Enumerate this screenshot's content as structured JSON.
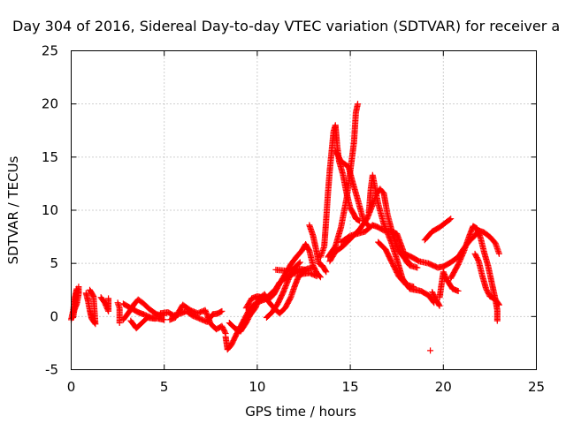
{
  "chart_data": {
    "type": "scatter",
    "title": "Day 304 of 2016, Sidereal Day-to-day VTEC variation (SDTVAR) for receiver a",
    "xlabel": "GPS time / hours",
    "ylabel": "SDTVAR / TECUs",
    "xlim": [
      0,
      25
    ],
    "ylim": [
      -5,
      25
    ],
    "xticks": [
      "0",
      "5",
      "10",
      "15",
      "20",
      "25"
    ],
    "yticks": [
      "-5",
      "0",
      "5",
      "10",
      "15",
      "20",
      "25"
    ],
    "grid": true,
    "marker": "+",
    "color": "#ff0000",
    "series": [
      {
        "points": [
          [
            0.0,
            -0.3
          ],
          [
            0.1,
            0.5
          ],
          [
            0.2,
            1.8
          ],
          [
            0.3,
            2.6
          ],
          [
            0.2,
            1.0
          ],
          [
            0.1,
            -0.1
          ]
        ]
      },
      {
        "points": [
          [
            0.1,
            0.3
          ],
          [
            0.3,
            1.2
          ],
          [
            0.4,
            2.1
          ],
          [
            0.4,
            2.8
          ]
        ]
      },
      {
        "points": [
          [
            0.8,
            2.2
          ],
          [
            0.9,
            1.5
          ],
          [
            1.0,
            0.6
          ],
          [
            1.1,
            -0.2
          ],
          [
            1.3,
            -0.7
          ],
          [
            1.2,
            1.9
          ],
          [
            1.0,
            2.5
          ]
        ]
      },
      {
        "points": [
          [
            1.6,
            1.8
          ],
          [
            1.8,
            1.3
          ],
          [
            2.0,
            0.5
          ],
          [
            2.0,
            1.7
          ]
        ]
      },
      {
        "points": [
          [
            2.5,
            1.3
          ],
          [
            2.6,
            0.8
          ],
          [
            2.6,
            -0.6
          ]
        ]
      },
      {
        "points": [
          [
            2.8,
            1.2
          ],
          [
            3.2,
            0.8
          ],
          [
            3.6,
            0.4
          ],
          [
            3.9,
            0.2
          ],
          [
            4.3,
            -0.1
          ],
          [
            4.7,
            -0.2
          ],
          [
            5.0,
            -0.3
          ]
        ]
      },
      {
        "points": [
          [
            2.8,
            -0.3
          ],
          [
            3.1,
            0.4
          ],
          [
            3.4,
            1.2
          ],
          [
            3.6,
            1.6
          ],
          [
            3.9,
            1.2
          ],
          [
            4.2,
            0.7
          ],
          [
            4.6,
            0.2
          ],
          [
            5.0,
            0.1
          ]
        ]
      },
      {
        "points": [
          [
            3.2,
            -0.4
          ],
          [
            3.5,
            -1.1
          ],
          [
            3.8,
            -0.6
          ],
          [
            4.1,
            -0.1
          ],
          [
            4.5,
            -0.2
          ]
        ]
      },
      {
        "points": [
          [
            4.8,
            0.3
          ],
          [
            5.2,
            0.4
          ],
          [
            5.5,
            0.1
          ],
          [
            5.9,
            0.3
          ],
          [
            6.2,
            0.5
          ],
          [
            6.5,
            0.1
          ],
          [
            6.9,
            -0.2
          ],
          [
            7.3,
            -0.5
          ],
          [
            7.6,
            0.2
          ],
          [
            7.9,
            0.3
          ],
          [
            8.1,
            0.5
          ]
        ]
      },
      {
        "points": [
          [
            5.3,
            -0.3
          ],
          [
            5.6,
            -0.1
          ],
          [
            6.0,
            1.1
          ],
          [
            6.4,
            0.6
          ],
          [
            6.8,
            0.3
          ],
          [
            7.2,
            0.6
          ],
          [
            7.5,
            -0.7
          ],
          [
            7.8,
            -1.2
          ],
          [
            8.1,
            -0.9
          ],
          [
            8.3,
            -1.6
          ]
        ]
      },
      {
        "points": [
          [
            8.3,
            -1.9
          ],
          [
            8.4,
            -3.1
          ],
          [
            8.6,
            -2.7
          ],
          [
            8.9,
            -1.6
          ],
          [
            9.2,
            -0.6
          ],
          [
            9.5,
            0.4
          ],
          [
            9.8,
            1.1
          ],
          [
            10.1,
            1.4
          ],
          [
            10.4,
            1.6
          ],
          [
            10.7,
            2.1
          ],
          [
            11.0,
            2.6
          ],
          [
            11.2,
            3.2
          ],
          [
            11.5,
            3.6
          ],
          [
            11.9,
            4.0
          ],
          [
            12.3,
            4.2
          ],
          [
            12.7,
            4.5
          ],
          [
            13.0,
            4.6
          ]
        ]
      },
      {
        "points": [
          [
            8.5,
            -0.6
          ],
          [
            8.8,
            -1.1
          ],
          [
            9.1,
            -1.4
          ],
          [
            9.4,
            -0.6
          ],
          [
            9.6,
            0.1
          ],
          [
            9.9,
            0.8
          ],
          [
            10.1,
            1.7
          ],
          [
            10.4,
            2.1
          ],
          [
            10.6,
            1.4
          ],
          [
            10.9,
            0.8
          ],
          [
            11.2,
            0.3
          ],
          [
            11.5,
            0.8
          ],
          [
            11.8,
            1.8
          ],
          [
            12.0,
            2.8
          ],
          [
            12.2,
            3.7
          ],
          [
            12.4,
            4.0
          ],
          [
            12.8,
            4.1
          ],
          [
            13.2,
            3.8
          ]
        ]
      },
      {
        "points": [
          [
            9.4,
            0.8
          ],
          [
            9.7,
            1.7
          ],
          [
            10.0,
            1.9
          ],
          [
            10.3,
            1.8
          ],
          [
            10.6,
            1.6
          ],
          [
            10.9,
            2.1
          ],
          [
            11.2,
            3.1
          ],
          [
            11.5,
            4.0
          ],
          [
            11.8,
            4.9
          ],
          [
            12.1,
            5.6
          ],
          [
            12.4,
            6.2
          ],
          [
            12.6,
            6.8
          ],
          [
            12.8,
            6.2
          ],
          [
            13.0,
            4.8
          ],
          [
            13.2,
            4.1
          ],
          [
            13.4,
            3.7
          ]
        ]
      },
      {
        "points": [
          [
            10.5,
            -0.1
          ],
          [
            10.8,
            0.4
          ],
          [
            11.1,
            1.2
          ],
          [
            11.4,
            2.3
          ],
          [
            11.7,
            3.6
          ],
          [
            12.0,
            4.6
          ],
          [
            12.3,
            5.1
          ]
        ]
      },
      {
        "points": [
          [
            11.0,
            4.4
          ],
          [
            11.6,
            4.3
          ],
          [
            12.2,
            4.5
          ],
          [
            12.6,
            4.4
          ]
        ]
      },
      {
        "points": [
          [
            12.8,
            8.6
          ],
          [
            13.0,
            7.6
          ],
          [
            13.2,
            6.0
          ],
          [
            13.3,
            5.0
          ],
          [
            13.5,
            4.8
          ],
          [
            13.7,
            4.2
          ]
        ]
      },
      {
        "points": [
          [
            13.4,
            5.6
          ],
          [
            13.6,
            6.6
          ],
          [
            13.7,
            9.0
          ],
          [
            13.8,
            11.6
          ],
          [
            13.9,
            13.8
          ],
          [
            14.0,
            15.6
          ],
          [
            14.1,
            17.4
          ],
          [
            14.2,
            18.0
          ],
          [
            14.3,
            16.0
          ],
          [
            14.4,
            14.6
          ],
          [
            14.6,
            13.4
          ],
          [
            14.8,
            11.6
          ],
          [
            15.0,
            10.2
          ],
          [
            15.2,
            9.6
          ],
          [
            15.3,
            9.2
          ],
          [
            15.5,
            9.0
          ]
        ]
      },
      {
        "points": [
          [
            13.8,
            5.6
          ],
          [
            14.2,
            6.6
          ],
          [
            14.5,
            8.4
          ],
          [
            14.8,
            11.1
          ],
          [
            15.0,
            13.7
          ],
          [
            15.2,
            16.4
          ],
          [
            15.3,
            19.2
          ],
          [
            15.4,
            20.0
          ]
        ]
      },
      {
        "points": [
          [
            13.9,
            5.2
          ],
          [
            14.2,
            6.1
          ],
          [
            14.6,
            6.6
          ],
          [
            15.0,
            7.3
          ],
          [
            15.5,
            8.2
          ],
          [
            15.9,
            9.2
          ],
          [
            16.2,
            10.5
          ],
          [
            16.4,
            11.5
          ],
          [
            16.6,
            12.0
          ],
          [
            16.8,
            11.6
          ],
          [
            17.0,
            9.6
          ],
          [
            17.3,
            7.6
          ],
          [
            17.6,
            6.2
          ],
          [
            17.9,
            5.5
          ],
          [
            18.2,
            5.0
          ]
        ]
      },
      {
        "points": [
          [
            14.2,
            15.6
          ],
          [
            14.5,
            14.6
          ],
          [
            14.9,
            14.1
          ],
          [
            15.1,
            12.8
          ],
          [
            15.4,
            11.0
          ],
          [
            15.7,
            9.1
          ],
          [
            16.0,
            8.5
          ]
        ]
      },
      {
        "points": [
          [
            14.5,
            7.0
          ],
          [
            15.0,
            7.6
          ],
          [
            15.4,
            7.8
          ],
          [
            15.8,
            8.0
          ],
          [
            16.2,
            8.6
          ],
          [
            16.5,
            8.4
          ],
          [
            16.8,
            8.1
          ],
          [
            17.2,
            8.0
          ],
          [
            17.5,
            7.8
          ],
          [
            17.8,
            6.4
          ],
          [
            18.0,
            5.2
          ],
          [
            18.2,
            4.8
          ],
          [
            18.6,
            4.6
          ]
        ]
      },
      {
        "points": [
          [
            16.0,
            9.8
          ],
          [
            16.1,
            12.0
          ],
          [
            16.2,
            13.3
          ],
          [
            16.5,
            10.6
          ],
          [
            16.8,
            8.7
          ],
          [
            17.2,
            7.0
          ],
          [
            17.5,
            5.4
          ],
          [
            17.8,
            3.6
          ],
          [
            18.2,
            2.6
          ],
          [
            18.8,
            2.4
          ],
          [
            19.2,
            2.0
          ],
          [
            19.5,
            1.3
          ]
        ]
      },
      {
        "points": [
          [
            16.5,
            7.0
          ],
          [
            16.9,
            6.3
          ],
          [
            17.2,
            5.2
          ],
          [
            17.6,
            3.8
          ],
          [
            18.0,
            3.0
          ],
          [
            18.4,
            2.8
          ]
        ]
      },
      {
        "points": [
          [
            17.8,
            6.0
          ],
          [
            18.3,
            5.6
          ],
          [
            18.7,
            5.2
          ],
          [
            19.2,
            5.0
          ],
          [
            19.7,
            4.6
          ],
          [
            20.0,
            4.7
          ],
          [
            20.4,
            5.1
          ],
          [
            20.8,
            5.6
          ],
          [
            21.1,
            6.4
          ],
          [
            21.4,
            7.1
          ],
          [
            21.7,
            7.6
          ],
          [
            21.9,
            8.1
          ],
          [
            22.2,
            7.9
          ],
          [
            22.5,
            7.5
          ],
          [
            22.8,
            6.9
          ],
          [
            23.0,
            5.9
          ]
        ]
      },
      {
        "points": [
          [
            19.0,
            7.2
          ],
          [
            19.4,
            8.0
          ],
          [
            19.8,
            8.4
          ],
          [
            20.1,
            8.8
          ],
          [
            20.4,
            9.2
          ]
        ]
      },
      {
        "points": [
          [
            19.3,
            -3.2
          ]
        ]
      },
      {
        "points": [
          [
            19.4,
            2.3
          ],
          [
            19.6,
            1.6
          ],
          [
            19.8,
            1.0
          ]
        ]
      },
      {
        "points": [
          [
            19.8,
            1.8
          ],
          [
            20.0,
            4.2
          ],
          [
            20.2,
            3.4
          ],
          [
            20.5,
            2.6
          ],
          [
            20.8,
            2.4
          ]
        ]
      },
      {
        "points": [
          [
            20.4,
            3.6
          ],
          [
            20.8,
            4.9
          ],
          [
            21.1,
            6.1
          ],
          [
            21.4,
            7.6
          ],
          [
            21.6,
            8.5
          ],
          [
            21.8,
            8.3
          ],
          [
            22.0,
            7.4
          ],
          [
            22.2,
            6.0
          ],
          [
            22.4,
            4.8
          ],
          [
            22.6,
            3.2
          ],
          [
            22.8,
            1.6
          ],
          [
            22.9,
            0.6
          ],
          [
            22.9,
            -0.4
          ]
        ]
      },
      {
        "points": [
          [
            21.7,
            5.9
          ],
          [
            21.9,
            5.2
          ],
          [
            22.1,
            3.8
          ],
          [
            22.3,
            2.6
          ],
          [
            22.5,
            1.9
          ],
          [
            22.8,
            1.6
          ],
          [
            23.0,
            1.1
          ]
        ]
      }
    ]
  }
}
